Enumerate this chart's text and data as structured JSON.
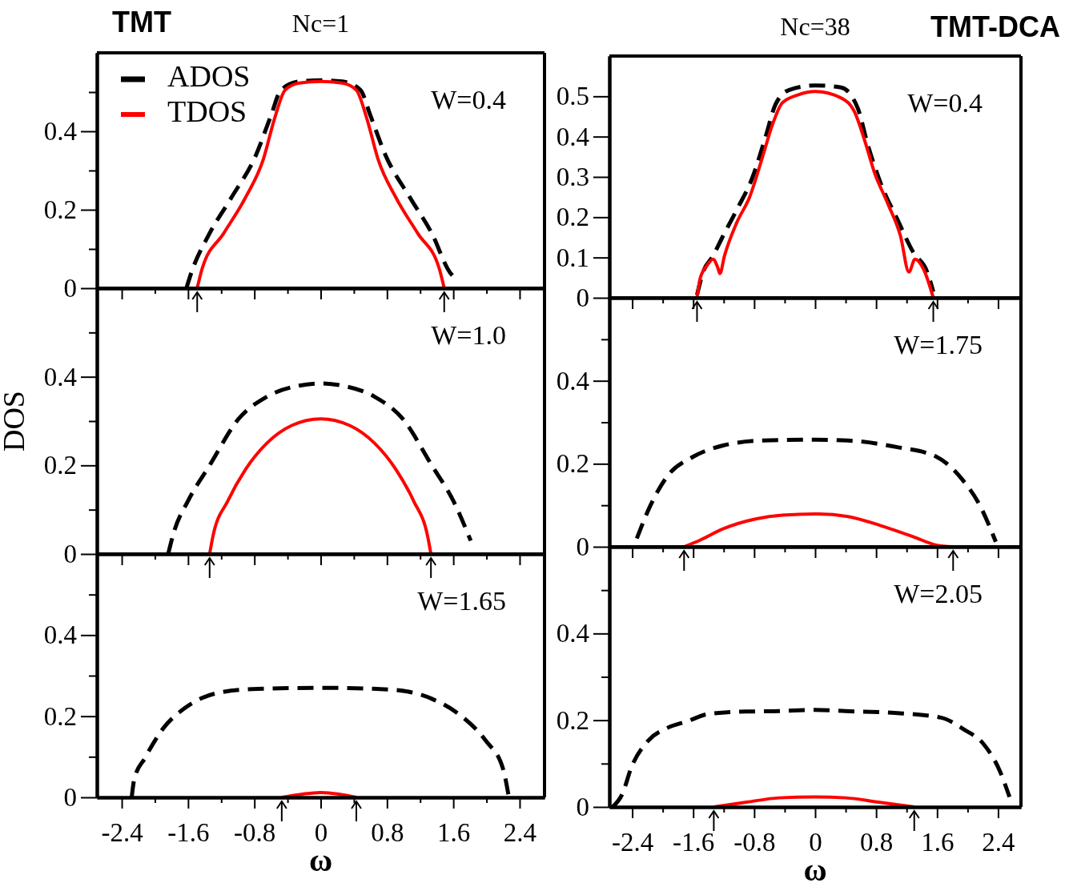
{
  "chart_data": [
    {
      "type": "line",
      "title": "Nc=1",
      "subtitle": "TMT",
      "annotations": [
        "W=0.4"
      ],
      "legend": "top left",
      "tick_labels": "y",
      "xlim": [
        -2.7,
        2.7
      ],
      "ylim": [
        0,
        0.6
      ],
      "xticks": [
        -2.4,
        {
          "value": -2.0,
          "label": null
        },
        -1.6,
        {
          "value": -1.2,
          "label": null
        },
        -0.8,
        {
          "value": -0.4,
          "label": null
        },
        0,
        {
          "value": 0.4,
          "label": null
        },
        0.8,
        {
          "value": 1.2,
          "label": null
        },
        1.6,
        {
          "value": 2.0,
          "label": null
        },
        2.4
      ],
      "yticks": [
        0,
        {
          "value": 0.1,
          "label": null
        },
        0.2,
        {
          "value": 0.3,
          "label": null
        },
        0.4,
        {
          "value": 0.5,
          "label": null
        }
      ],
      "series": [
        {
          "name": "ADOS",
          "color": "#000000",
          "line_style": "dashed",
          "x": [
            -1.62,
            -1.56,
            -1.34,
            -1.08,
            -0.78,
            -0.6,
            -0.48,
            -0.26,
            0,
            0.26,
            0.48,
            0.6,
            0.78,
            1.08,
            1.34,
            1.56,
            1.6
          ],
          "values": [
            0,
            0.04,
            0.14,
            0.23,
            0.34,
            0.44,
            0.505,
            0.527,
            0.53,
            0.527,
            0.505,
            0.44,
            0.34,
            0.23,
            0.14,
            0.04,
            0.03
          ]
        },
        {
          "name": "TDOS",
          "color": "#ff0000",
          "line_style": "solid",
          "x": [
            -1.49,
            -1.43,
            -1.17,
            -0.91,
            -0.69,
            -0.56,
            -0.43,
            -0.26,
            0,
            0.26,
            0.43,
            0.56,
            0.69,
            0.91,
            1.17,
            1.43,
            1.49
          ],
          "values": [
            0,
            0.05,
            0.14,
            0.23,
            0.33,
            0.43,
            0.505,
            0.523,
            0.527,
            0.523,
            0.505,
            0.43,
            0.33,
            0.23,
            0.14,
            0.05,
            0
          ]
        }
      ]
    },
    {
      "type": "line",
      "title": "Nc=38",
      "subtitle": "TMT-DCA",
      "annotations": [
        "W=0.4"
      ],
      "tick_labels": "y",
      "xlim": [
        -2.7,
        2.7
      ],
      "ylim": [
        0,
        0.6
      ],
      "xticks": [
        -2.4,
        {
          "value": -2.0,
          "label": null
        },
        -1.6,
        {
          "value": -1.2,
          "label": null
        },
        -0.8,
        {
          "value": -0.4,
          "label": null
        },
        0,
        {
          "value": 0.4,
          "label": null
        },
        0.8,
        {
          "value": 1.2,
          "label": null
        },
        1.6,
        {
          "value": 2.0,
          "label": null
        },
        2.4
      ],
      "yticks": [
        0,
        0.1,
        0.2,
        0.3,
        0.4,
        0.5
      ],
      "series": [
        {
          "color": "#000000",
          "line_style": "dashed",
          "x": [
            -1.55,
            -1.47,
            -1.34,
            -1.21,
            -1.03,
            -0.82,
            -0.65,
            -0.52,
            -0.34,
            0,
            0.34,
            0.56,
            0.69,
            0.86,
            1.08,
            1.29,
            1.47,
            1.55
          ],
          "values": [
            0.007,
            0.064,
            0.104,
            0.153,
            0.218,
            0.3,
            0.4,
            0.48,
            0.516,
            0.527,
            0.522,
            0.47,
            0.38,
            0.284,
            0.194,
            0.112,
            0.064,
            0.015
          ]
        },
        {
          "color": "#ff0000",
          "line_style": "solid",
          "x": [
            -1.55,
            -1.51,
            -1.42,
            -1.34,
            -1.28,
            -1.25,
            -1.19,
            -1.03,
            -0.86,
            -0.69,
            -0.56,
            -0.43,
            -0.22,
            0,
            0.34,
            0.52,
            0.65,
            0.78,
            0.95,
            1.12,
            1.23,
            1.31,
            1.42,
            1.55
          ],
          "values": [
            0,
            0.047,
            0.08,
            0.096,
            0.076,
            0.06,
            0.104,
            0.186,
            0.25,
            0.35,
            0.43,
            0.484,
            0.504,
            0.512,
            0.496,
            0.46,
            0.39,
            0.31,
            0.235,
            0.153,
            0.064,
            0.096,
            0.072,
            0
          ]
        }
      ]
    },
    {
      "type": "line",
      "ylabel": "DOS",
      "annotations": [
        "W=1.0"
      ],
      "tick_labels": "y",
      "xlim": [
        -2.7,
        2.7
      ],
      "ylim": [
        0,
        0.6
      ],
      "xticks": [
        -2.4,
        {
          "value": -2.0,
          "label": null
        },
        -1.6,
        {
          "value": -1.2,
          "label": null
        },
        -0.8,
        {
          "value": -0.4,
          "label": null
        },
        0,
        {
          "value": 0.4,
          "label": null
        },
        0.8,
        {
          "value": 1.2,
          "label": null
        },
        1.6,
        {
          "value": 2.0,
          "label": null
        },
        2.4
      ],
      "yticks": [
        0,
        {
          "value": 0.1,
          "label": null
        },
        0.2,
        {
          "value": 0.3,
          "label": null
        },
        0.4,
        {
          "value": 0.5,
          "label": null
        }
      ],
      "series": [
        {
          "color": "#000000",
          "line_style": "dashed",
          "x": [
            -1.84,
            -1.77,
            -1.6,
            -1.34,
            -0.99,
            -0.65,
            -0.26,
            0,
            0.26,
            0.65,
            0.99,
            1.34,
            1.6,
            1.81
          ],
          "values": [
            0,
            0.05,
            0.12,
            0.2,
            0.305,
            0.355,
            0.38,
            0.385,
            0.38,
            0.355,
            0.305,
            0.2,
            0.12,
            0.03
          ]
        },
        {
          "color": "#ff0000",
          "line_style": "solid",
          "x": [
            -1.34,
            -1.3,
            -1.12,
            -0.91,
            -0.65,
            -0.35,
            0,
            0.35,
            0.65,
            0.91,
            1.12,
            1.29,
            1.33
          ],
          "values": [
            0,
            0.04,
            0.12,
            0.19,
            0.25,
            0.29,
            0.305,
            0.29,
            0.25,
            0.19,
            0.12,
            0.04,
            0
          ]
        }
      ]
    },
    {
      "type": "line",
      "annotations": [
        "W=1.75"
      ],
      "tick_labels": "y",
      "xlim": [
        -2.7,
        2.7
      ],
      "ylim": [
        0,
        0.6
      ],
      "xticks": [
        -2.4,
        {
          "value": -2.0,
          "label": null
        },
        -1.6,
        {
          "value": -1.2,
          "label": null
        },
        -0.8,
        {
          "value": -0.4,
          "label": null
        },
        0,
        {
          "value": 0.4,
          "label": null
        },
        0.8,
        {
          "value": 1.2,
          "label": null
        },
        1.6,
        {
          "value": 2.0,
          "label": null
        },
        2.4
      ],
      "yticks": [
        0,
        {
          "value": 0.1,
          "label": null
        },
        0.2,
        {
          "value": 0.3,
          "label": null
        },
        0.4,
        {
          "value": 0.5,
          "label": null
        }
      ],
      "series": [
        {
          "color": "#000000",
          "line_style": "dashed",
          "x": [
            -2.34,
            -2.16,
            -1.94,
            -1.6,
            -1.21,
            -0.69,
            0,
            0.43,
            1.08,
            1.59,
            1.94,
            2.16,
            2.37
          ],
          "values": [
            0.02,
            0.1,
            0.17,
            0.217,
            0.244,
            0.256,
            0.258,
            0.256,
            0.24,
            0.217,
            0.16,
            0.1,
            0.012
          ]
        },
        {
          "color": "#ff0000",
          "line_style": "solid",
          "x": [
            -1.72,
            -1.51,
            -1.21,
            -0.78,
            -0.43,
            0.04,
            0.43,
            0.86,
            1.29,
            1.59,
            1.81
          ],
          "values": [
            0,
            0.016,
            0.043,
            0.067,
            0.076,
            0.079,
            0.073,
            0.051,
            0.024,
            0.004,
            0
          ]
        }
      ]
    },
    {
      "type": "line",
      "annotations": [
        "W=1.65"
      ],
      "xlabel": "ω",
      "xlim": [
        -2.7,
        2.7
      ],
      "ylim": [
        0,
        0.6
      ],
      "xticks": [
        -2.4,
        {
          "value": -2.0,
          "label": null
        },
        -1.6,
        {
          "value": -1.2,
          "label": null
        },
        -0.8,
        {
          "value": -0.4,
          "label": null
        },
        0,
        {
          "value": 0.4,
          "label": null
        },
        0.8,
        {
          "value": 1.2,
          "label": null
        },
        1.6,
        {
          "value": 2.0,
          "label": null
        },
        2.4
      ],
      "yticks": [
        0,
        {
          "value": 0.1,
          "label": null
        },
        0.2,
        {
          "value": 0.3,
          "label": null
        },
        0.4,
        {
          "value": 0.5,
          "label": null
        }
      ],
      "series": [
        {
          "color": "#000000",
          "line_style": "dashed",
          "x": [
            -2.28,
            -2.25,
            -2.12,
            -1.9,
            -1.64,
            -1.25,
            -0.82,
            0,
            0.82,
            1.34,
            1.68,
            1.99,
            2.2,
            2.27
          ],
          "values": [
            0,
            0.044,
            0.097,
            0.17,
            0.22,
            0.257,
            0.267,
            0.27,
            0.266,
            0.243,
            0.203,
            0.14,
            0.07,
            0
          ]
        },
        {
          "color": "#ff0000",
          "line_style": "solid",
          "x": [
            -0.47,
            -0.22,
            0,
            0.22,
            0.43
          ],
          "values": [
            0,
            0.008,
            0.012,
            0.008,
            0
          ]
        }
      ]
    },
    {
      "type": "line",
      "annotations": [
        "W=2.05"
      ],
      "xlabel": "ω",
      "xlim": [
        -2.7,
        2.7
      ],
      "ylim": [
        0,
        0.6
      ],
      "xticks": [
        -2.4,
        {
          "value": -2.0,
          "label": null
        },
        -1.6,
        {
          "value": -1.2,
          "label": null
        },
        -0.8,
        {
          "value": -0.4,
          "label": null
        },
        0,
        {
          "value": 0.4,
          "label": null
        },
        0.8,
        {
          "value": 1.2,
          "label": null
        },
        1.6,
        {
          "value": 2.0,
          "label": null
        },
        2.4
      ],
      "yticks": [
        0,
        {
          "value": 0.1,
          "label": null
        },
        0.2,
        {
          "value": 0.3,
          "label": null
        },
        0.4,
        {
          "value": 0.5,
          "label": null
        }
      ],
      "series": [
        {
          "color": "#000000",
          "line_style": "dashed",
          "x": [
            -2.66,
            -2.53,
            -2.41,
            -2.19,
            -1.93,
            -1.67,
            -1.41,
            -0.9,
            -0.47,
            0,
            0.4,
            1.04,
            1.65,
            1.95,
            2.21,
            2.42,
            2.55
          ],
          "values": [
            0,
            0.03,
            0.092,
            0.153,
            0.183,
            0.198,
            0.214,
            0.22,
            0.221,
            0.224,
            0.221,
            0.217,
            0.206,
            0.179,
            0.145,
            0.084,
            0.023
          ]
        },
        {
          "color": "#ff0000",
          "line_style": "solid",
          "x": [
            -1.33,
            -0.9,
            -0.47,
            0,
            0.4,
            0.83,
            1.3
          ],
          "values": [
            0,
            0.011,
            0.021,
            0.023,
            0.021,
            0.011,
            0
          ]
        }
      ]
    }
  ]
}
